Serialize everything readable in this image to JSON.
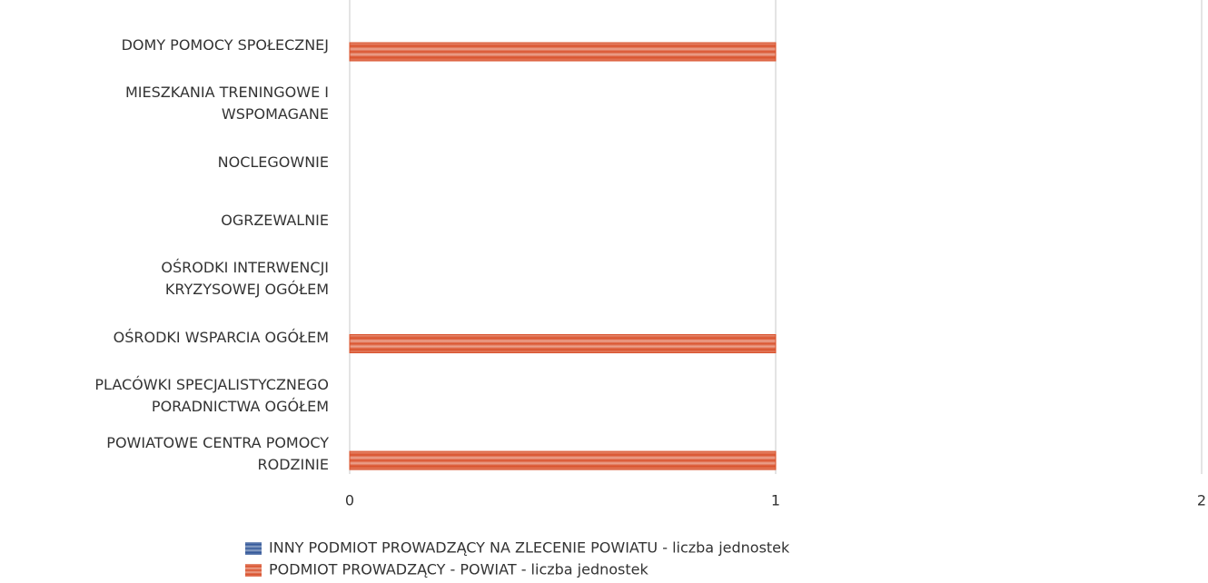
{
  "chart_data": {
    "type": "bar",
    "orientation": "horizontal",
    "categories": [
      "DOMY POMOCY SPOŁECZNEJ",
      "MIESZKANIA TRENINGOWE I\nWSPOMAGANE",
      "NOCLEGOWNIE",
      "OGRZEWALNIE",
      "OŚRODKI INTERWENCJI\nKRYZYSOWEJ OGÓŁEM",
      "OŚRODKI WSPARCIA OGÓŁEM",
      "PLACÓWKI SPECJALISTYCZNEGO\nPORADNICTWA OGÓŁEM",
      "POWIATOWE CENTRA POMOCY\nRODZINIE"
    ],
    "series": [
      {
        "name": "INNY PODMIOT PROWADZĄCY NA ZLECENIE POWIATU - liczba jednostek",
        "color": "#2f5597",
        "values": [
          0,
          0,
          0,
          0,
          0,
          0,
          0,
          0
        ]
      },
      {
        "name": "PODMIOT PROWADZĄCY - POWIAT - liczba jednostek",
        "color": "#d9502a",
        "values": [
          1,
          0,
          0,
          0,
          0,
          1,
          0,
          1
        ]
      }
    ],
    "xlim": [
      0,
      2
    ],
    "xticks": [
      0,
      1,
      2
    ],
    "grid": true,
    "legend": "bottom"
  }
}
